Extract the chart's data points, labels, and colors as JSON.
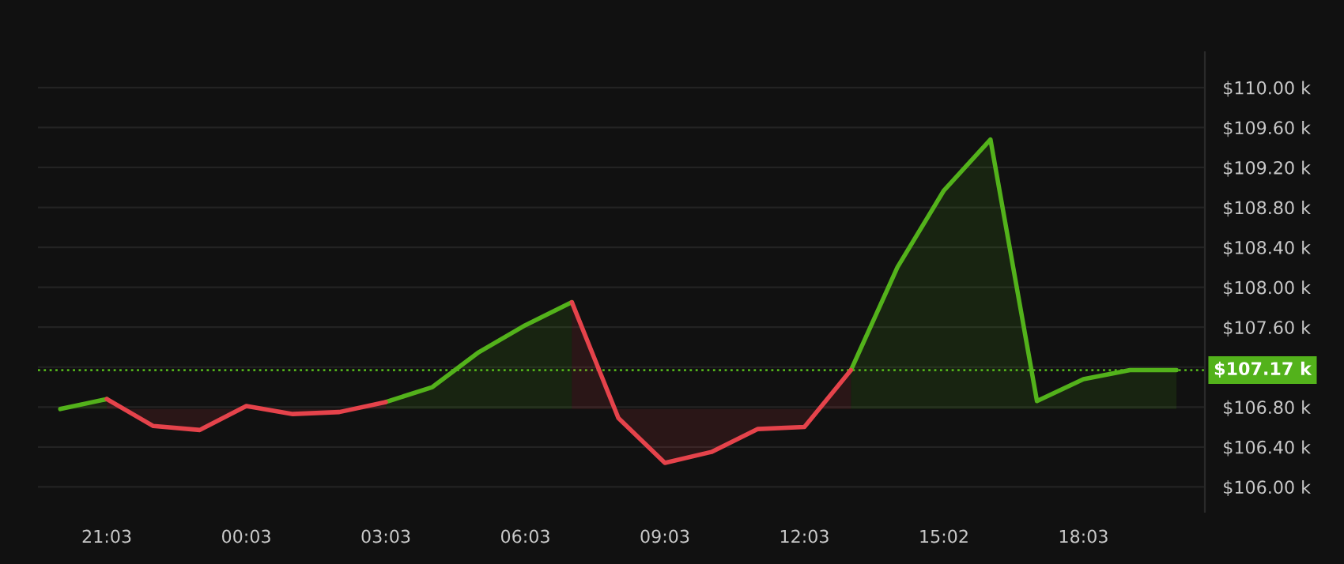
{
  "chart_data": {
    "type": "area",
    "categories": [
      null,
      "21:03",
      null,
      null,
      "00:03",
      null,
      null,
      "03:03",
      null,
      null,
      "06:03",
      null,
      null,
      "09:03",
      null,
      null,
      "12:03",
      null,
      null,
      "15:02",
      null,
      null,
      "18:03",
      null,
      null
    ],
    "series": [
      {
        "color": "#53b21b",
        "values": [
          106.78,
          106.88,
          null,
          null,
          null,
          null,
          null,
          106.85,
          107.0,
          107.35,
          107.62,
          107.85,
          null,
          null,
          null,
          null,
          null,
          107.17,
          108.2,
          108.97,
          109.48,
          106.86,
          107.08,
          107.17,
          107.17
        ]
      },
      {
        "color": "#e5434b",
        "values": [
          null,
          106.88,
          106.61,
          106.57,
          106.81,
          106.73,
          106.75,
          106.85,
          null,
          null,
          null,
          107.85,
          106.69,
          106.24,
          106.35,
          106.58,
          106.6,
          107.17,
          null,
          null,
          null,
          null,
          null,
          null,
          null
        ]
      }
    ],
    "ylim": [
      105.75,
      110.355
    ],
    "yticks": [
      {
        "value": 106.0,
        "label": "$106.00 k"
      },
      {
        "value": 106.4,
        "label": "$106.40 k"
      },
      {
        "value": 106.8,
        "label": "$106.80 k"
      },
      {
        "value": 107.2,
        "label": null
      },
      {
        "value": 107.6,
        "label": "$107.60 k"
      },
      {
        "value": 108.0,
        "label": "$108.00 k"
      },
      {
        "value": 108.4,
        "label": "$108.40 k"
      },
      {
        "value": 108.8,
        "label": "$108.80 k"
      },
      {
        "value": 109.2,
        "label": "$109.20 k"
      },
      {
        "value": 109.6,
        "label": "$109.60 k"
      },
      {
        "value": 110.0,
        "label": "$110.00 k"
      }
    ],
    "ref_lines": [
      {
        "axis": "y",
        "value": 107.17,
        "label": "$107.17 k",
        "color": "#53b21b",
        "line_style": "dotted"
      }
    ],
    "grid": "y"
  }
}
